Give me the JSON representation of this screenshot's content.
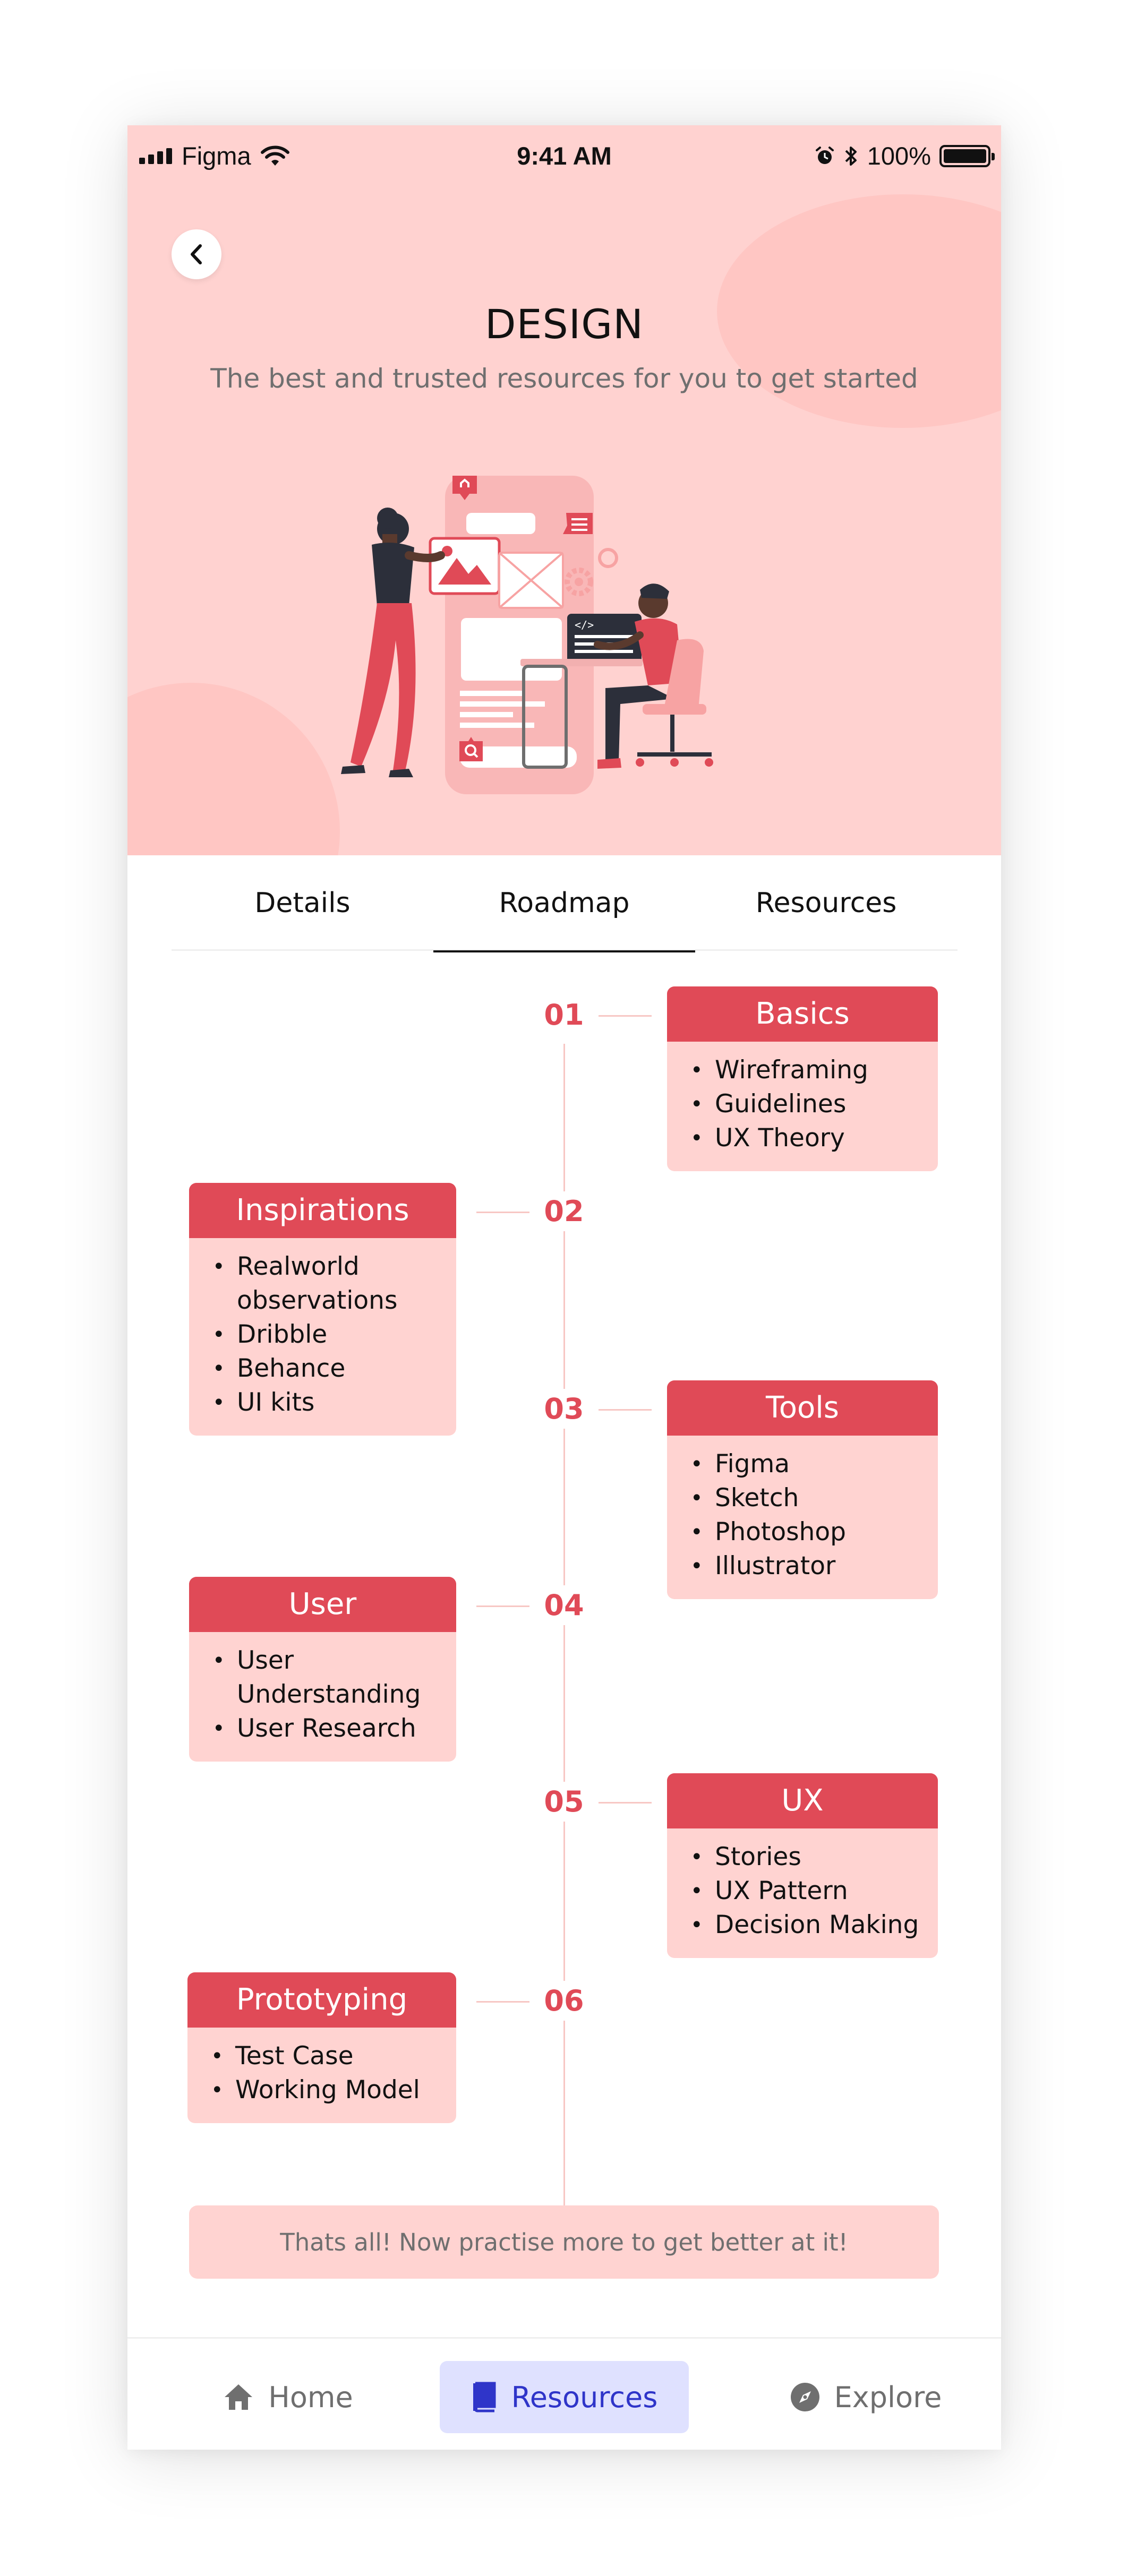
{
  "status_bar": {
    "carrier": "Figma",
    "time": "9:41 AM",
    "battery": "100%"
  },
  "header": {
    "title": "DESIGN",
    "subtitle": "The best and trusted resources for you to get started"
  },
  "tabs": [
    {
      "label": "Details"
    },
    {
      "label": "Roadmap",
      "active": true
    },
    {
      "label": "Resources"
    }
  ],
  "roadmap": [
    {
      "number": "01",
      "title": "Basics",
      "items": [
        "Wireframing",
        "Guidelines",
        "UX Theory"
      ]
    },
    {
      "number": "02",
      "title": "Inspirations",
      "items": [
        "Realworld observations",
        "Dribble",
        "Behance",
        "UI kits"
      ]
    },
    {
      "number": "03",
      "title": "Tools",
      "items": [
        "Figma",
        "Sketch",
        "Photoshop",
        "Illustrator"
      ]
    },
    {
      "number": "04",
      "title": "User",
      "items": [
        "User Understanding",
        "User Research"
      ]
    },
    {
      "number": "05",
      "title": "UX",
      "items": [
        "Stories",
        "UX Pattern",
        "Decision Making"
      ]
    },
    {
      "number": "06",
      "title": "Prototyping",
      "items": [
        "Test Case",
        "Working Model"
      ]
    }
  ],
  "footer_note": "Thats all! Now practise more to get better at it!",
  "bottom_nav": [
    {
      "label": "Home",
      "icon": "home-icon"
    },
    {
      "label": "Resources",
      "icon": "book-icon",
      "active": true
    },
    {
      "label": "Explore",
      "icon": "compass-icon"
    }
  ],
  "colors": {
    "header_bg": "#ffd2d0",
    "accent": "#e04a57",
    "card_bg": "#ffd3d1",
    "nav_active_bg": "#dfe1ff",
    "nav_active_text": "#2f35c9"
  }
}
